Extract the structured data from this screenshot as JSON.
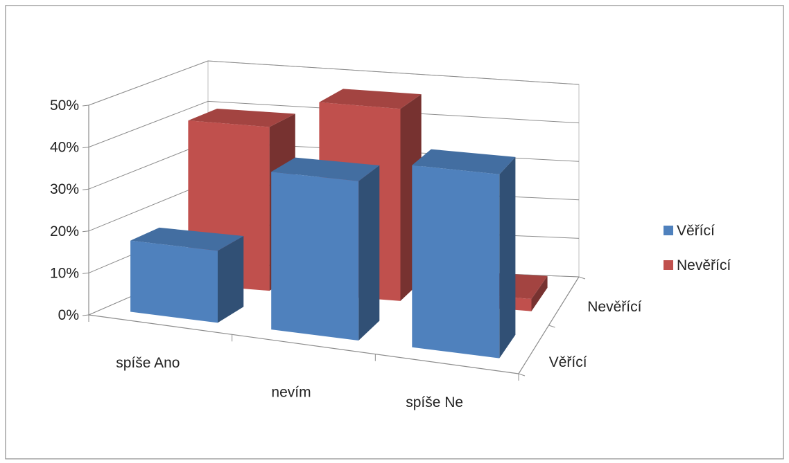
{
  "chart_data": {
    "type": "bar",
    "title": "",
    "xlabel": "",
    "ylabel": "",
    "categories": [
      "spíše Ano",
      "nevím",
      "spíše Ne"
    ],
    "depth_categories": [
      "Věřící",
      "Nevěřící"
    ],
    "series": [
      {
        "name": "Věřící",
        "values": [
          17,
          37,
          42
        ],
        "color": "#4F81BD"
      },
      {
        "name": "Nevěřící",
        "values": [
          40,
          47,
          3
        ],
        "color": "#C0504D"
      }
    ],
    "y_ticks": [
      "0%",
      "10%",
      "20%",
      "30%",
      "40%",
      "50%"
    ],
    "ylim": [
      0,
      50
    ],
    "y_unit": "%",
    "grid": true,
    "projection": "3d-perspective",
    "legend": {
      "position": "right",
      "items": [
        "Věřící",
        "Nevěřící"
      ]
    }
  }
}
